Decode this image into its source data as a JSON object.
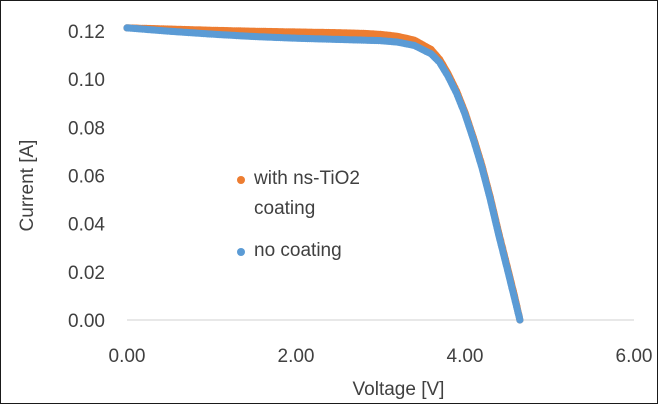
{
  "chart_data": {
    "type": "scatter",
    "title": "",
    "xlabel": "Voltage [V]",
    "ylabel": "Current [A]",
    "xlim": [
      0,
      6
    ],
    "ylim": [
      0,
      0.12
    ],
    "x_ticks": [
      "0.00",
      "2.00",
      "4.00",
      "6.00"
    ],
    "y_ticks": [
      "0.00",
      "0.02",
      "0.04",
      "0.06",
      "0.08",
      "0.10",
      "0.12"
    ],
    "grid": false,
    "legend_position": "center-left",
    "series": [
      {
        "name": "with ns-TiO2 coating",
        "color": "#ED7D31",
        "points": [
          [
            0.0,
            0.1213
          ],
          [
            0.5,
            0.1208
          ],
          [
            1.0,
            0.1203
          ],
          [
            1.5,
            0.1199
          ],
          [
            2.0,
            0.1196
          ],
          [
            2.5,
            0.1193
          ],
          [
            2.8,
            0.119
          ],
          [
            3.0,
            0.1186
          ],
          [
            3.2,
            0.1178
          ],
          [
            3.4,
            0.1162
          ],
          [
            3.6,
            0.1123
          ],
          [
            3.7,
            0.1082
          ],
          [
            3.8,
            0.1022
          ],
          [
            3.9,
            0.095
          ],
          [
            4.0,
            0.0862
          ],
          [
            4.1,
            0.0757
          ],
          [
            4.2,
            0.0642
          ],
          [
            4.3,
            0.0508
          ],
          [
            4.4,
            0.036
          ],
          [
            4.5,
            0.0221
          ],
          [
            4.55,
            0.0151
          ],
          [
            4.6,
            0.0079
          ],
          [
            4.65,
            0.0
          ]
        ]
      },
      {
        "name": "no coating",
        "color": "#5B9BD5",
        "points": [
          [
            0.0,
            0.1213
          ],
          [
            0.5,
            0.1199
          ],
          [
            1.0,
            0.1187
          ],
          [
            1.5,
            0.1177
          ],
          [
            2.0,
            0.117
          ],
          [
            2.5,
            0.1165
          ],
          [
            2.8,
            0.1162
          ],
          [
            3.0,
            0.116
          ],
          [
            3.2,
            0.1154
          ],
          [
            3.4,
            0.114
          ],
          [
            3.6,
            0.1105
          ],
          [
            3.7,
            0.107
          ],
          [
            3.8,
            0.1012
          ],
          [
            3.9,
            0.0942
          ],
          [
            4.0,
            0.0855
          ],
          [
            4.1,
            0.075
          ],
          [
            4.2,
            0.0634
          ],
          [
            4.3,
            0.05
          ],
          [
            4.4,
            0.0352
          ],
          [
            4.5,
            0.0213
          ],
          [
            4.55,
            0.0142
          ],
          [
            4.6,
            0.0071
          ],
          [
            4.65,
            0.0
          ]
        ]
      }
    ],
    "legend": [
      {
        "lines": [
          "with ns-TiO2",
          "coating"
        ],
        "color": "#ED7D31"
      },
      {
        "lines": [
          "no coating"
        ],
        "color": "#5B9BD5"
      }
    ]
  }
}
